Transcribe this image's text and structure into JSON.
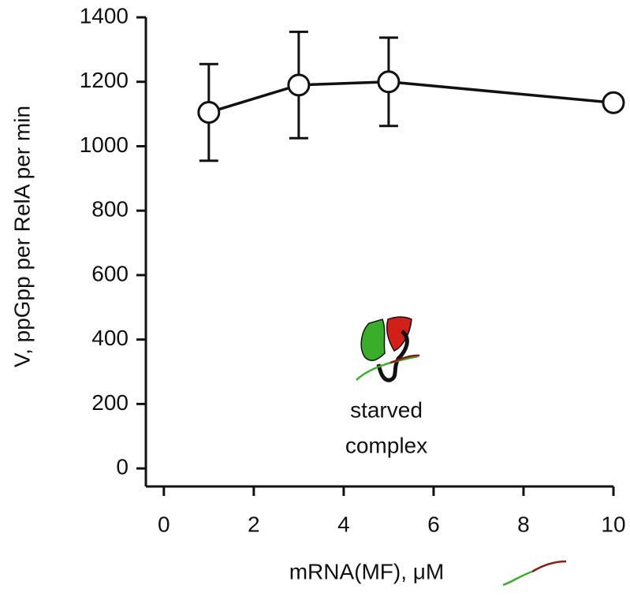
{
  "chart_data": {
    "type": "line",
    "xlabel": "mRNA(MF), μM",
    "ylabel": "V, ppGpp per RelA per min",
    "annotation": [
      "starved",
      "complex"
    ],
    "x": [
      1,
      3,
      5,
      10
    ],
    "series": [
      {
        "color": "#111111",
        "values": [
          1105,
          1190,
          1200,
          1135
        ],
        "errors": [
          150,
          165,
          137,
          null
        ]
      }
    ],
    "xlim": [
      -0.4,
      10
    ],
    "xticks": [
      0,
      2,
      4,
      6,
      8,
      10
    ],
    "ylim": [
      -56,
      1400
    ],
    "yticks": [
      0,
      200,
      400,
      600,
      800,
      1000,
      1200,
      1400
    ]
  }
}
